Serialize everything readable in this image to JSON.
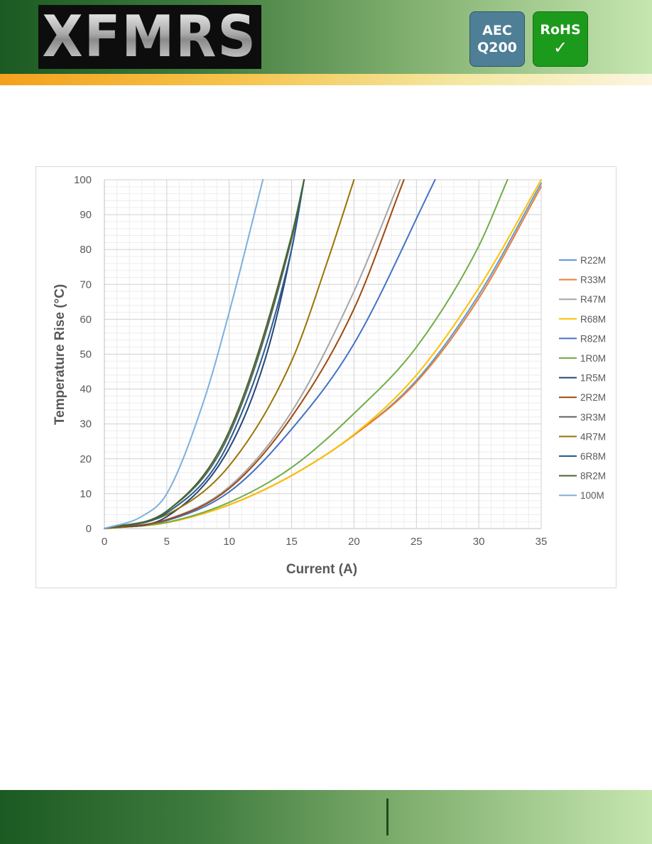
{
  "header": {
    "logo_text": "XFMRS",
    "badge_aec": {
      "line1": "AEC",
      "line2": "Q200",
      "color": "#4e7f96"
    },
    "badge_rohs": {
      "line1": "RoHS",
      "check": "✓",
      "color": "#1c9a1c"
    }
  },
  "chart_data": {
    "type": "line",
    "xlabel": "Current (A)",
    "ylabel": "Temperature Rise (°C)",
    "xlim": [
      0,
      35
    ],
    "ylim": [
      0,
      100
    ],
    "x_ticks": [
      0,
      5,
      10,
      15,
      20,
      25,
      30,
      35
    ],
    "y_ticks": [
      0,
      10,
      20,
      30,
      40,
      50,
      60,
      70,
      80,
      90,
      100
    ],
    "grid": true,
    "minor_grid": true,
    "legend_position": "right",
    "series": [
      {
        "name": "R22M",
        "color": "#5b9bd5",
        "points": [
          [
            0,
            0
          ],
          [
            5,
            1.7
          ],
          [
            10,
            6.8
          ],
          [
            15,
            15.2
          ],
          [
            20,
            26.8
          ],
          [
            25,
            42.5
          ],
          [
            30,
            67.0
          ],
          [
            35,
            99.0
          ]
        ]
      },
      {
        "name": "R33M",
        "color": "#ed7d31",
        "points": [
          [
            0,
            0
          ],
          [
            5,
            1.7
          ],
          [
            10,
            6.8
          ],
          [
            15,
            15.2
          ],
          [
            20,
            26.8
          ],
          [
            25,
            42.0
          ],
          [
            30,
            66.0
          ],
          [
            35,
            98.0
          ]
        ]
      },
      {
        "name": "R47M",
        "color": "#a5a5a5",
        "points": [
          [
            0,
            0
          ],
          [
            5,
            2.6
          ],
          [
            10,
            12.0
          ],
          [
            15,
            33.5
          ],
          [
            20,
            68.0
          ],
          [
            23.7,
            100
          ]
        ]
      },
      {
        "name": "R68M",
        "color": "#ffc000",
        "points": [
          [
            0,
            0
          ],
          [
            5,
            1.7
          ],
          [
            10,
            6.8
          ],
          [
            15,
            15.2
          ],
          [
            20,
            27.0
          ],
          [
            25,
            44.0
          ],
          [
            30,
            69.0
          ],
          [
            35,
            100
          ]
        ]
      },
      {
        "name": "R82M",
        "color": "#4472c4",
        "points": [
          [
            0,
            0
          ],
          [
            5,
            2.3
          ],
          [
            10,
            10.5
          ],
          [
            15,
            28.5
          ],
          [
            20,
            53.0
          ],
          [
            26.5,
            100
          ]
        ]
      },
      {
        "name": "1R0M",
        "color": "#70ad47",
        "points": [
          [
            0,
            0
          ],
          [
            5,
            1.8
          ],
          [
            10,
            7.5
          ],
          [
            15,
            17.5
          ],
          [
            20,
            33.0
          ],
          [
            25,
            52.0
          ],
          [
            30,
            81.0
          ],
          [
            32.3,
            100
          ]
        ]
      },
      {
        "name": "1R5M",
        "color": "#264478",
        "points": [
          [
            0,
            0
          ],
          [
            5,
            3.4
          ],
          [
            10,
            23.0
          ],
          [
            13,
            50.0
          ],
          [
            15,
            80.0
          ],
          [
            16,
            100
          ]
        ]
      },
      {
        "name": "2R2M",
        "color": "#9e480e",
        "points": [
          [
            0,
            0
          ],
          [
            5,
            2.5
          ],
          [
            10,
            11.5
          ],
          [
            15,
            32.0
          ],
          [
            20,
            63.0
          ],
          [
            24,
            100
          ]
        ]
      },
      {
        "name": "3R3M",
        "color": "#636363",
        "points": [
          [
            0,
            0
          ],
          [
            5,
            5.0
          ],
          [
            10,
            27.0
          ],
          [
            15,
            83.0
          ],
          [
            16,
            100
          ]
        ]
      },
      {
        "name": "4R7M",
        "color": "#997300",
        "points": [
          [
            0,
            0
          ],
          [
            5,
            4.0
          ],
          [
            10,
            18.0
          ],
          [
            15,
            48.0
          ],
          [
            18,
            78.0
          ],
          [
            20,
            100
          ]
        ]
      },
      {
        "name": "6R8M",
        "color": "#255e91",
        "points": [
          [
            0,
            0
          ],
          [
            5,
            4.5
          ],
          [
            10,
            25.0
          ],
          [
            15,
            80.0
          ],
          [
            16,
            100
          ]
        ]
      },
      {
        "name": "8R2M",
        "color": "#43682b",
        "points": [
          [
            0,
            0
          ],
          [
            5,
            5.0
          ],
          [
            10,
            28.0
          ],
          [
            15,
            84.0
          ],
          [
            16,
            100
          ]
        ]
      },
      {
        "name": "100M",
        "color": "#7cafdd",
        "points": [
          [
            0,
            0
          ],
          [
            3,
            3.5
          ],
          [
            5,
            10.0
          ],
          [
            8,
            37.0
          ],
          [
            10,
            62.0
          ],
          [
            12.7,
            100
          ]
        ]
      }
    ]
  }
}
